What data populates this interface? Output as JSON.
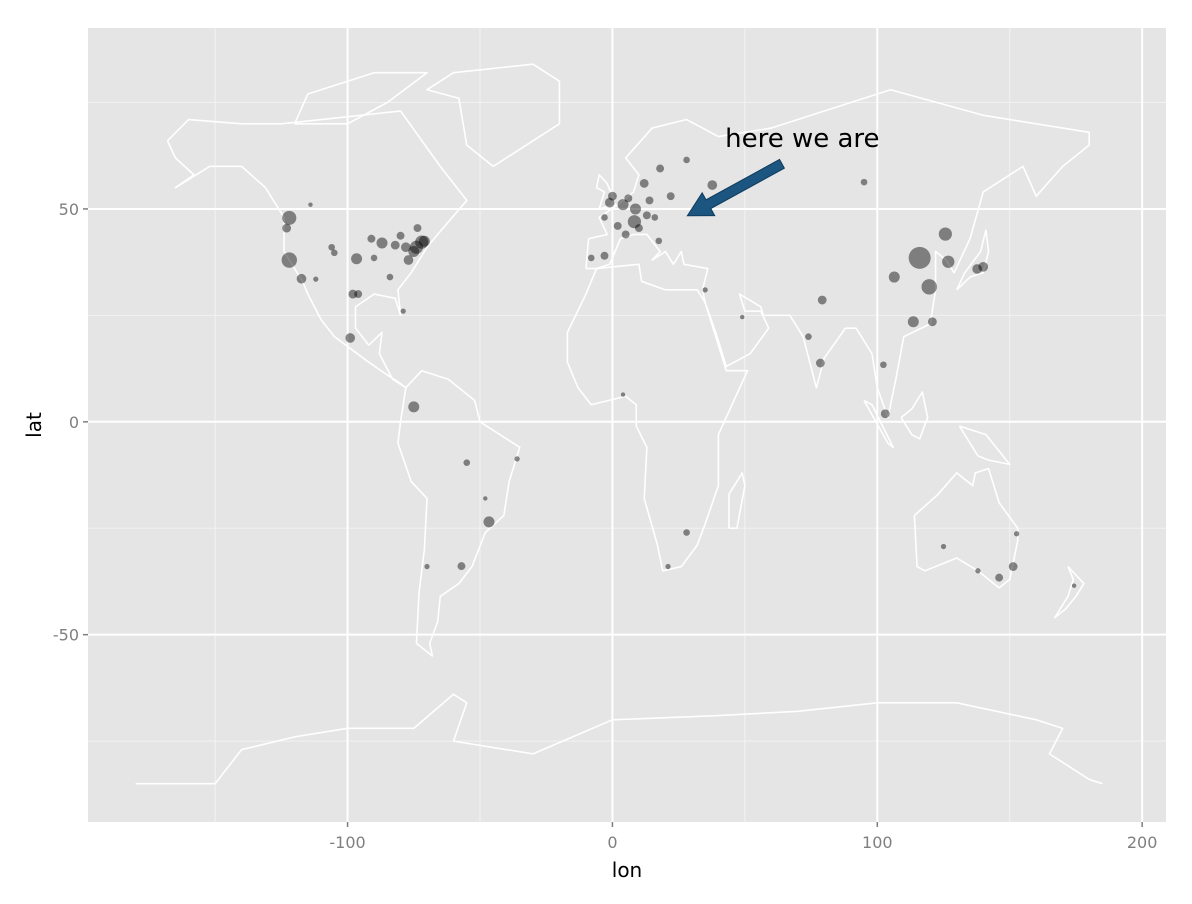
{
  "chart_data": {
    "type": "scatter",
    "title": "",
    "xlabel": "lon",
    "ylabel": "lat",
    "xlim": [
      -198,
      209
    ],
    "ylim": [
      -94,
      92.5
    ],
    "xticks": [
      -100,
      0,
      100,
      200
    ],
    "yticks": [
      -50,
      0,
      50
    ],
    "grid": true,
    "background": "#e5e5e5",
    "gridcolor": "#ffffff",
    "map_outline_color": "#ffffff",
    "point_color": "#000000",
    "point_alpha": 0.45,
    "points": [
      {
        "lon": 116,
        "lat": 38.5,
        "size": 5
      },
      {
        "lon": 119.6,
        "lat": 31.7,
        "size": 3.5
      },
      {
        "lon": 125.7,
        "lat": 44.1,
        "size": 3
      },
      {
        "lon": 126.8,
        "lat": 37.6,
        "size": 2.8
      },
      {
        "lon": 106.4,
        "lat": 34,
        "size": 2.5
      },
      {
        "lon": 113.6,
        "lat": 23.5,
        "size": 2.5
      },
      {
        "lon": 120.8,
        "lat": 23.5,
        "size": 2
      },
      {
        "lon": 137.7,
        "lat": 35.9,
        "size": 2.2
      },
      {
        "lon": 140,
        "lat": 36.4,
        "size": 2.2
      },
      {
        "lon": 95,
        "lat": 56.3,
        "size": 1.5
      },
      {
        "lon": 79.2,
        "lat": 28.6,
        "size": 2
      },
      {
        "lon": 74,
        "lat": 20,
        "size": 1.5
      },
      {
        "lon": 78.5,
        "lat": 13.8,
        "size": 2
      },
      {
        "lon": 103,
        "lat": 1.9,
        "size": 2
      },
      {
        "lon": 102.3,
        "lat": 13.4,
        "size": 1.5
      },
      {
        "lon": 125,
        "lat": -29.3,
        "size": 1.2
      },
      {
        "lon": 146,
        "lat": -36.6,
        "size": 1.8
      },
      {
        "lon": 151.3,
        "lat": -34,
        "size": 2
      },
      {
        "lon": 138,
        "lat": -35,
        "size": 1.2
      },
      {
        "lon": 152.6,
        "lat": -26.3,
        "size": 1.2
      },
      {
        "lon": 174.3,
        "lat": -38.5,
        "size": 1
      },
      {
        "lon": -46.6,
        "lat": -23.5,
        "size": 2.5
      },
      {
        "lon": -57,
        "lat": -33.9,
        "size": 1.8
      },
      {
        "lon": -75,
        "lat": 3.5,
        "size": 2.5
      },
      {
        "lon": -55,
        "lat": -9.6,
        "size": 1.5
      },
      {
        "lon": -36,
        "lat": -8.7,
        "size": 1.2
      },
      {
        "lon": -70,
        "lat": -34,
        "size": 1.2
      },
      {
        "lon": -48,
        "lat": -18,
        "size": 1
      },
      {
        "lon": -99,
        "lat": 19.7,
        "size": 2.2
      },
      {
        "lon": -122,
        "lat": 47.9,
        "size": 3.2
      },
      {
        "lon": -122,
        "lat": 38,
        "size": 3.5
      },
      {
        "lon": -117.4,
        "lat": 33.6,
        "size": 2.2
      },
      {
        "lon": -96.6,
        "lat": 38.3,
        "size": 2.5
      },
      {
        "lon": -98,
        "lat": 30,
        "size": 2
      },
      {
        "lon": -96,
        "lat": 30,
        "size": 1.8
      },
      {
        "lon": -87,
        "lat": 42,
        "size": 2.5
      },
      {
        "lon": -78,
        "lat": 41,
        "size": 2.2
      },
      {
        "lon": -74,
        "lat": 41,
        "size": 3
      },
      {
        "lon": -72,
        "lat": 42.2,
        "size": 3
      },
      {
        "lon": -77,
        "lat": 38,
        "size": 2.2
      },
      {
        "lon": -91,
        "lat": 43,
        "size": 1.8
      },
      {
        "lon": -82,
        "lat": 41.5,
        "size": 2
      },
      {
        "lon": -106,
        "lat": 41,
        "size": 1.5
      },
      {
        "lon": -79,
        "lat": 26,
        "size": 1.2
      },
      {
        "lon": -84,
        "lat": 34,
        "size": 1.5
      },
      {
        "lon": -90,
        "lat": 38.5,
        "size": 1.5
      },
      {
        "lon": -112,
        "lat": 33.5,
        "size": 1.2
      },
      {
        "lon": -105,
        "lat": 39.7,
        "size": 1.5
      },
      {
        "lon": -123,
        "lat": 45.5,
        "size": 2
      },
      {
        "lon": -75,
        "lat": 40,
        "size": 2.5
      },
      {
        "lon": -71,
        "lat": 42.4,
        "size": 2.5
      },
      {
        "lon": -80,
        "lat": 43.7,
        "size": 1.8
      },
      {
        "lon": -73.6,
        "lat": 45.5,
        "size": 1.8
      },
      {
        "lon": -114,
        "lat": 51,
        "size": 1
      },
      {
        "lon": 12,
        "lat": 56,
        "size": 2
      },
      {
        "lon": 0,
        "lat": 53,
        "size": 2
      },
      {
        "lon": 4,
        "lat": 51,
        "size": 2.5
      },
      {
        "lon": 8.7,
        "lat": 50,
        "size": 2.5
      },
      {
        "lon": 8.3,
        "lat": 47,
        "size": 3
      },
      {
        "lon": 5,
        "lat": 44,
        "size": 1.8
      },
      {
        "lon": 2,
        "lat": 46,
        "size": 1.8
      },
      {
        "lon": 18,
        "lat": 59.5,
        "size": 1.8
      },
      {
        "lon": 28,
        "lat": 61.5,
        "size": 1.5
      },
      {
        "lon": 22,
        "lat": 53,
        "size": 1.8
      },
      {
        "lon": 37.7,
        "lat": 55.6,
        "size": 2.2
      },
      {
        "lon": 17.5,
        "lat": 42.5,
        "size": 1.5
      },
      {
        "lon": -3,
        "lat": 39,
        "size": 1.8
      },
      {
        "lon": -8,
        "lat": 38.5,
        "size": 1.5
      },
      {
        "lon": -3,
        "lat": 48,
        "size": 1.5
      },
      {
        "lon": 13,
        "lat": 48.5,
        "size": 1.8
      },
      {
        "lon": 14,
        "lat": 52,
        "size": 1.8
      },
      {
        "lon": 10,
        "lat": 45.5,
        "size": 1.8
      },
      {
        "lon": 16,
        "lat": 48,
        "size": 1.5
      },
      {
        "lon": -1,
        "lat": 51.5,
        "size": 2.2
      },
      {
        "lon": 6,
        "lat": 52.5,
        "size": 1.8
      },
      {
        "lon": 28,
        "lat": -26,
        "size": 1.5
      },
      {
        "lon": 21,
        "lat": -34,
        "size": 1.2
      },
      {
        "lon": 4,
        "lat": 6.4,
        "size": 1
      },
      {
        "lon": 49,
        "lat": 24.6,
        "size": 1
      },
      {
        "lon": 35,
        "lat": 31,
        "size": 1.2
      }
    ],
    "annotations": [
      {
        "text": "here we are",
        "lon": 71.7,
        "lat": 66.7,
        "arrow_from": [
          64,
          60.6
        ],
        "arrow_to": [
          28.3,
          48.4
        ],
        "arrow_color": "#1b5580"
      }
    ]
  }
}
